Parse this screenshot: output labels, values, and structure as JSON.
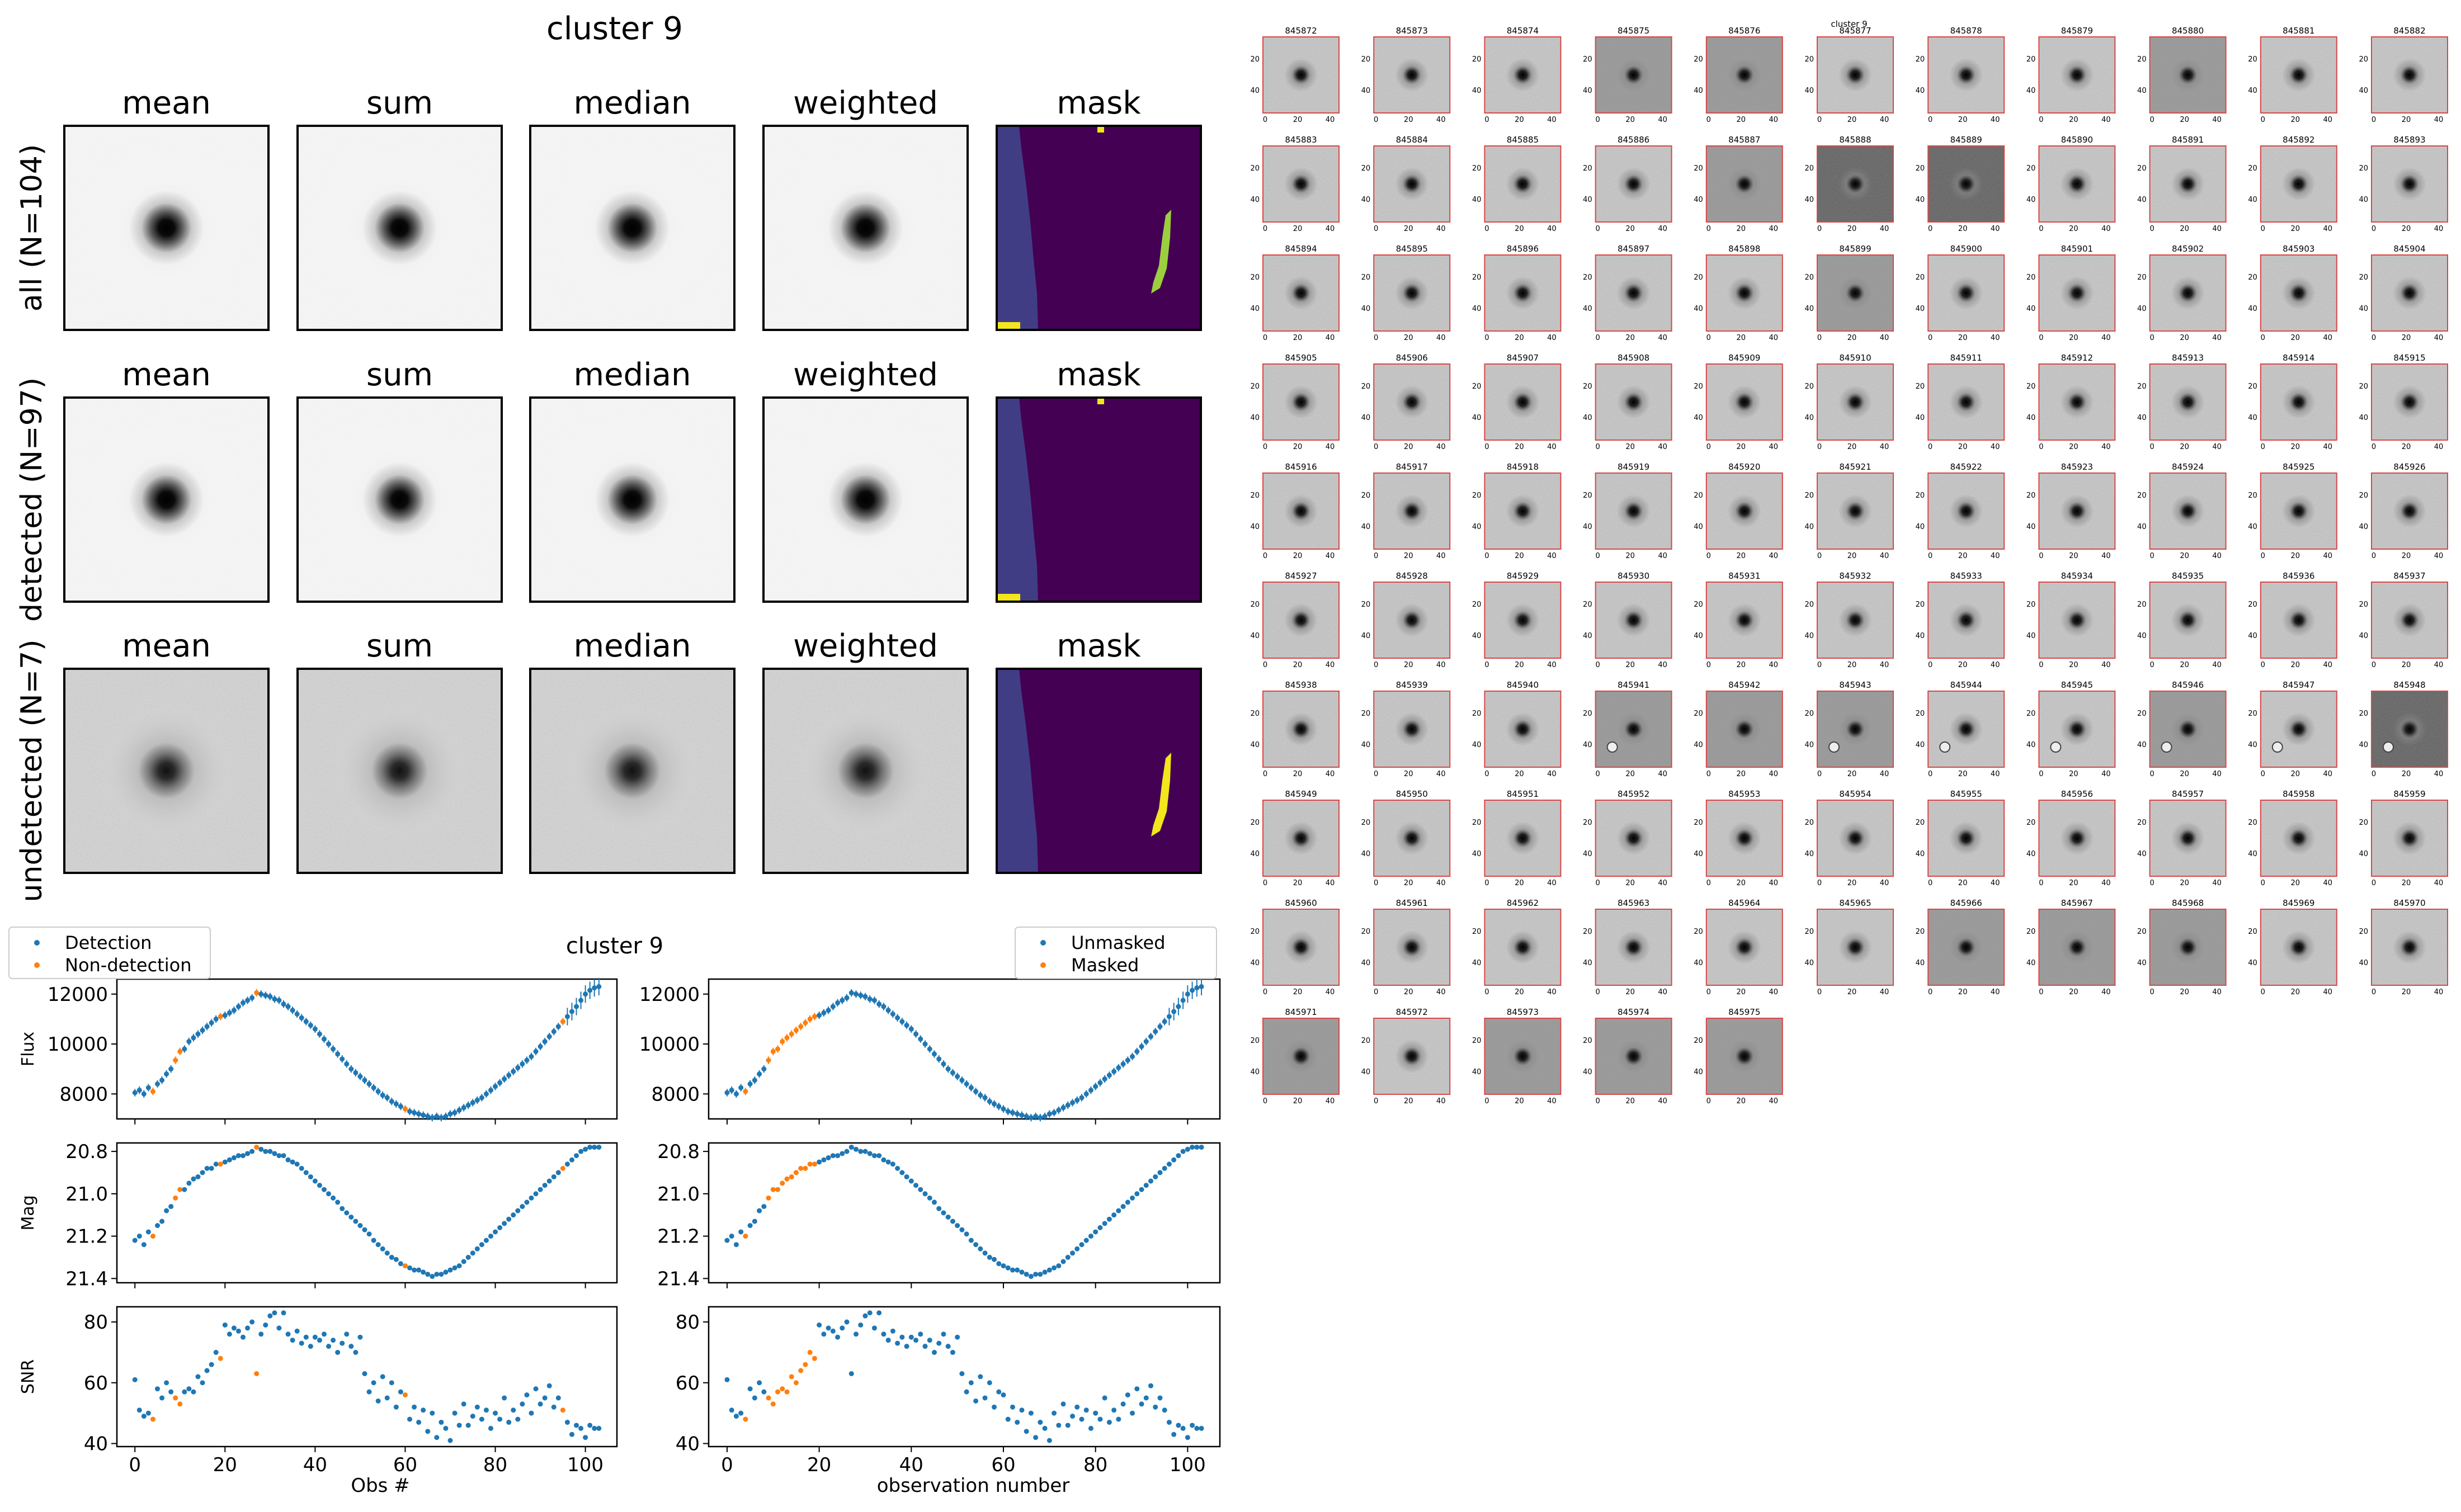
{
  "left_panel": {
    "title": "cluster 9",
    "column_labels": [
      "mean",
      "sum",
      "median",
      "weighted",
      "mask"
    ],
    "rows": [
      {
        "label": "all (N=104)",
        "noise": "low",
        "mask": {
          "band": true,
          "streak": "#9ccf40",
          "dots": true
        }
      },
      {
        "label": "detected (N=97)",
        "noise": "low",
        "mask": {
          "band": true,
          "streak": "",
          "dots": true
        }
      },
      {
        "label": "undetected (N=7)",
        "noise": "high",
        "mask": {
          "band": true,
          "streak": "#f2e61c",
          "dots": false
        }
      }
    ],
    "colors": {
      "mask_bg": "#440154",
      "mask_band": "#413d84",
      "mask_yellow": "#f2e61c",
      "mask_green": "#9ccf40"
    }
  },
  "chart_data": {
    "type": "scatter",
    "title": "cluster 9",
    "colors": {
      "blue": "#1f77b4",
      "orange": "#ff7f0e"
    },
    "left_legend": [
      "Detection",
      "Non-detection"
    ],
    "right_legend": [
      "Unmasked",
      "Masked"
    ],
    "left_xlabel": "Obs #",
    "right_xlabel": "observation number",
    "xlim": [
      -4,
      107
    ],
    "xticks": [
      "0",
      "20",
      "40",
      "60",
      "80",
      "100"
    ],
    "x": [
      0,
      1,
      2,
      3,
      4,
      5,
      6,
      7,
      8,
      9,
      10,
      11,
      12,
      13,
      14,
      15,
      16,
      17,
      18,
      19,
      20,
      21,
      22,
      23,
      24,
      25,
      26,
      27,
      28,
      29,
      30,
      31,
      32,
      33,
      34,
      35,
      36,
      37,
      38,
      39,
      40,
      41,
      42,
      43,
      44,
      45,
      46,
      47,
      48,
      49,
      50,
      51,
      52,
      53,
      54,
      55,
      56,
      57,
      58,
      59,
      60,
      61,
      62,
      63,
      64,
      65,
      66,
      67,
      68,
      69,
      70,
      71,
      72,
      73,
      74,
      75,
      76,
      77,
      78,
      79,
      80,
      81,
      82,
      83,
      84,
      85,
      86,
      87,
      88,
      89,
      90,
      91,
      92,
      93,
      94,
      95,
      96,
      97,
      98,
      99,
      100,
      101,
      102,
      103
    ],
    "non_detection": [
      4,
      9,
      10,
      19,
      27,
      60,
      95
    ],
    "masked": [
      4,
      9,
      10,
      11,
      12,
      13,
      14,
      15,
      16,
      17,
      18,
      19
    ],
    "panels": [
      {
        "ylabel": "Flux",
        "ylim": [
          7000,
          12600
        ],
        "yticks": [
          8000,
          10000,
          12000
        ],
        "ytick_labels": [
          "8000",
          "10000",
          "12000"
        ],
        "inverted": false,
        "values": [
          8050,
          8150,
          8000,
          8250,
          8100,
          8400,
          8550,
          8800,
          9000,
          9350,
          9700,
          9800,
          10100,
          10250,
          10400,
          10550,
          10700,
          10850,
          11000,
          11100,
          11150,
          11250,
          11350,
          11500,
          11650,
          11750,
          11850,
          12050,
          12000,
          11950,
          11900,
          11800,
          11750,
          11600,
          11500,
          11350,
          11200,
          11050,
          10900,
          10750,
          10600,
          10400,
          10200,
          10000,
          9800,
          9600,
          9400,
          9200,
          9000,
          8850,
          8700,
          8550,
          8400,
          8250,
          8100,
          7950,
          7850,
          7700,
          7600,
          7500,
          7400,
          7300,
          7250,
          7200,
          7150,
          7100,
          7050,
          7100,
          7050,
          7100,
          7200,
          7250,
          7350,
          7450,
          7550,
          7650,
          7750,
          7850,
          8000,
          8150,
          8300,
          8450,
          8600,
          8750,
          8900,
          9050,
          9200,
          9350,
          9500,
          9700,
          9900,
          10100,
          10300,
          10500,
          10700,
          10900,
          11100,
          11300,
          11500,
          11750,
          12000,
          12150,
          12250,
          12300
        ],
        "has_errorbars": true
      },
      {
        "ylabel": "Mag",
        "ylim": [
          21.42,
          20.76
        ],
        "yticks": [
          20.8,
          21.0,
          21.2,
          21.4
        ],
        "ytick_labels": [
          "20.8",
          "21.0",
          "21.2",
          "21.4"
        ],
        "inverted": true,
        "values": [
          21.22,
          21.2,
          21.24,
          21.18,
          21.2,
          21.15,
          21.13,
          21.08,
          21.06,
          21.02,
          20.98,
          20.98,
          20.95,
          20.93,
          20.92,
          20.9,
          20.88,
          20.88,
          20.86,
          20.86,
          20.85,
          20.84,
          20.83,
          20.82,
          20.82,
          20.81,
          20.8,
          20.78,
          20.79,
          20.8,
          20.8,
          20.81,
          20.82,
          20.82,
          20.84,
          20.85,
          20.86,
          20.88,
          20.9,
          20.92,
          20.94,
          20.96,
          20.98,
          21.0,
          21.02,
          21.04,
          21.07,
          21.09,
          21.11,
          21.13,
          21.15,
          21.17,
          21.19,
          21.22,
          21.24,
          21.26,
          21.28,
          21.3,
          21.31,
          21.33,
          21.34,
          21.35,
          21.36,
          21.36,
          21.37,
          21.38,
          21.39,
          21.38,
          21.38,
          21.37,
          21.36,
          21.35,
          21.34,
          21.32,
          21.3,
          21.28,
          21.26,
          21.24,
          21.22,
          21.2,
          21.18,
          21.16,
          21.14,
          21.12,
          21.1,
          21.08,
          21.06,
          21.04,
          21.02,
          21.0,
          20.98,
          20.96,
          20.94,
          20.92,
          20.9,
          20.88,
          20.86,
          20.84,
          20.82,
          20.8,
          20.79,
          20.78,
          20.78,
          20.78
        ],
        "has_errorbars": false
      },
      {
        "ylabel": "SNR",
        "ylim": [
          39,
          85
        ],
        "yticks": [
          40,
          60,
          80
        ],
        "ytick_labels": [
          "40",
          "60",
          "80"
        ],
        "inverted": false,
        "values": [
          61,
          51,
          49,
          50,
          48,
          58,
          55,
          60,
          57,
          55,
          53,
          57,
          58,
          57,
          62,
          60,
          64,
          66,
          70,
          68,
          79,
          76,
          78,
          77,
          75,
          78,
          80,
          63,
          76,
          79,
          82,
          83,
          78,
          83,
          76,
          74,
          77,
          73,
          75,
          72,
          75,
          74,
          76,
          72,
          74,
          70,
          73,
          76,
          72,
          70,
          75,
          63,
          57,
          60,
          54,
          62,
          55,
          60,
          52,
          57,
          56,
          48,
          52,
          47,
          51,
          44,
          50,
          42,
          47,
          45,
          41,
          50,
          46,
          53,
          46,
          49,
          52,
          48,
          51,
          45,
          50,
          48,
          55,
          47,
          51,
          48,
          53,
          56,
          50,
          58,
          53,
          55,
          59,
          52,
          55,
          51,
          47,
          43,
          46,
          45,
          42,
          46,
          45,
          45
        ],
        "has_errorbars": false
      }
    ]
  },
  "thumbnail_grid": {
    "title": "cluster 9",
    "tick_labels_x": [
      "0",
      "20",
      "40"
    ],
    "tick_labels_y": [
      "20",
      "40"
    ],
    "labels": [
      "845872",
      "845873",
      "845874",
      "845875",
      "845876",
      "845877",
      "845878",
      "845879",
      "845880",
      "845881",
      "845882",
      "845883",
      "845884",
      "845885",
      "845886",
      "845887",
      "845888",
      "845889",
      "845890",
      "845891",
      "845892",
      "845893",
      "845894",
      "845895",
      "845896",
      "845897",
      "845898",
      "845899",
      "845900",
      "845901",
      "845902",
      "845903",
      "845904",
      "845905",
      "845906",
      "845907",
      "845908",
      "845909",
      "845910",
      "845911",
      "845912",
      "845913",
      "845914",
      "845915",
      "845916",
      "845917",
      "845918",
      "845919",
      "845920",
      "845921",
      "845922",
      "845923",
      "845924",
      "845925",
      "845926",
      "845927",
      "845928",
      "845929",
      "845930",
      "845931",
      "845932",
      "845933",
      "845934",
      "845935",
      "845936",
      "845937",
      "845938",
      "845939",
      "845940",
      "845941",
      "845942",
      "845943",
      "845944",
      "845945",
      "845946",
      "845947",
      "845948",
      "845949",
      "845950",
      "845951",
      "845952",
      "845953",
      "845954",
      "845955",
      "845956",
      "845957",
      "845958",
      "845959",
      "845960",
      "845961",
      "845962",
      "845963",
      "845964",
      "845965",
      "845966",
      "845967",
      "845968",
      "845969",
      "845970",
      "845971",
      "845972",
      "845973",
      "845974",
      "845975"
    ],
    "dark_cells": [
      "845888",
      "845889",
      "845948"
    ],
    "medium_cells": [
      "845876",
      "845875",
      "845880",
      "845887",
      "845899",
      "845941",
      "845942",
      "845943",
      "845946",
      "845966",
      "845967",
      "845968",
      "845971",
      "845973",
      "845974",
      "845975"
    ],
    "artifact_cells": [
      "845941",
      "845943",
      "845944",
      "845945",
      "845946",
      "845947",
      "845948"
    ]
  }
}
